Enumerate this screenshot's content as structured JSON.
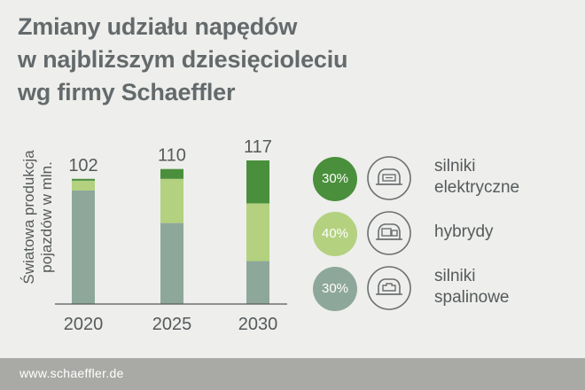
{
  "title_lines": [
    "Zmiany udziału napędów",
    "w najbliższym dziesięcioleciu",
    "wg firmy Schaeffler"
  ],
  "chart_data": {
    "type": "bar",
    "stacked": true,
    "ylabel_lines": [
      "Światowa produkcja",
      "pojazdów w mln."
    ],
    "categories": [
      "2020",
      "2025",
      "2030"
    ],
    "totals": [
      102,
      110,
      117
    ],
    "ylim": [
      0,
      117
    ],
    "series": [
      {
        "name": "silniki spalinowe",
        "values": [
          92.5,
          66,
          35
        ],
        "color": "#8ea79b"
      },
      {
        "name": "hybrydy",
        "values": [
          8,
          36,
          47
        ],
        "color": "#b3d17f"
      },
      {
        "name": "silniki elektryczne",
        "values": [
          1.5,
          8,
          35
        ],
        "color": "#4a8f3c"
      }
    ]
  },
  "legend": [
    {
      "pct": "30%",
      "label": "silniki\nelektryczne",
      "icon": "electric-car-icon",
      "color": "#4a8f3c"
    },
    {
      "pct": "40%",
      "label": "hybrydy",
      "icon": "hybrid-car-icon",
      "color": "#b3d17f"
    },
    {
      "pct": "30%",
      "label": "silniki\nspalinowe",
      "icon": "combustion-car-icon",
      "color": "#8ea79b"
    }
  ],
  "footer": {
    "url": "www.schaeffler.de"
  }
}
